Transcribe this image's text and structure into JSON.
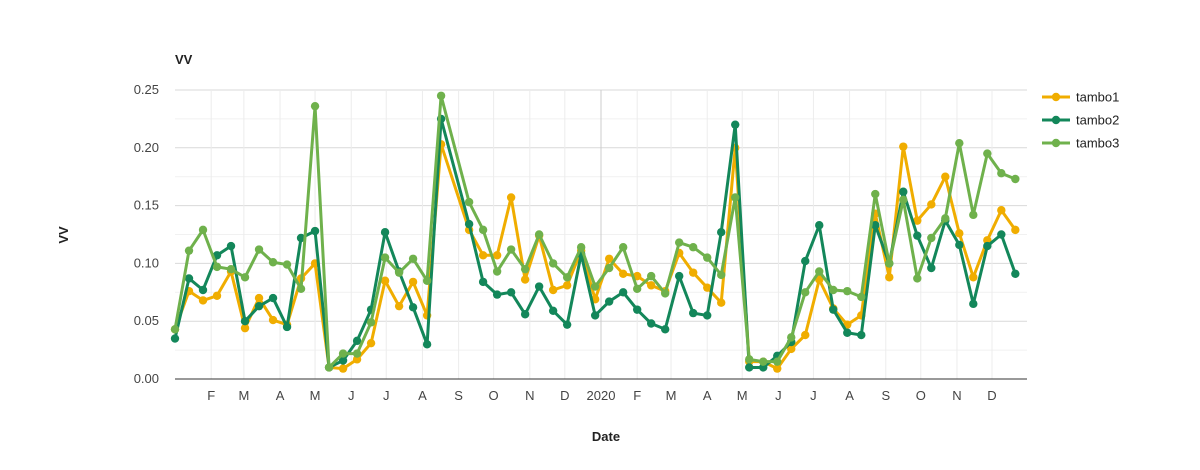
{
  "chart_data": {
    "type": "line",
    "title": "VV",
    "xlabel": "Date",
    "ylabel": "VV",
    "ylim": [
      0,
      0.25
    ],
    "yticks": [
      "0.00",
      "0.05",
      "0.10",
      "0.15",
      "0.20",
      "0.25"
    ],
    "x_range": [
      "2019-01-01",
      "2020-12-31"
    ],
    "xticks": [
      {
        "label": "F",
        "date": "2019-02-01"
      },
      {
        "label": "M",
        "date": "2019-03-01"
      },
      {
        "label": "A",
        "date": "2019-04-01"
      },
      {
        "label": "M",
        "date": "2019-05-01"
      },
      {
        "label": "J",
        "date": "2019-06-01"
      },
      {
        "label": "J",
        "date": "2019-07-01"
      },
      {
        "label": "A",
        "date": "2019-08-01"
      },
      {
        "label": "S",
        "date": "2019-09-01"
      },
      {
        "label": "O",
        "date": "2019-10-01"
      },
      {
        "label": "N",
        "date": "2019-11-01"
      },
      {
        "label": "D",
        "date": "2019-12-01"
      },
      {
        "label": "2020",
        "date": "2020-01-01"
      },
      {
        "label": "F",
        "date": "2020-02-01"
      },
      {
        "label": "M",
        "date": "2020-03-01"
      },
      {
        "label": "A",
        "date": "2020-04-01"
      },
      {
        "label": "M",
        "date": "2020-05-01"
      },
      {
        "label": "J",
        "date": "2020-06-01"
      },
      {
        "label": "J",
        "date": "2020-07-01"
      },
      {
        "label": "A",
        "date": "2020-08-01"
      },
      {
        "label": "S",
        "date": "2020-09-01"
      },
      {
        "label": "O",
        "date": "2020-10-01"
      },
      {
        "label": "N",
        "date": "2020-11-01"
      },
      {
        "label": "D",
        "date": "2020-12-01"
      }
    ],
    "grid": true,
    "legend_position": "right",
    "series": [
      {
        "name": "tambo1",
        "color": "#f0ad00",
        "points": [
          [
            "2019-01-01",
            0.043
          ],
          [
            "2019-01-13",
            0.076
          ],
          [
            "2019-01-25",
            0.068
          ],
          [
            "2019-02-06",
            0.072
          ],
          [
            "2019-02-18",
            0.093
          ],
          [
            "2019-03-02",
            0.044
          ],
          [
            "2019-03-14",
            0.07
          ],
          [
            "2019-03-26",
            0.051
          ],
          [
            "2019-04-07",
            0.047
          ],
          [
            "2019-04-19",
            0.087
          ],
          [
            "2019-05-01",
            0.1
          ],
          [
            "2019-05-13",
            0.01
          ],
          [
            "2019-05-25",
            0.009
          ],
          [
            "2019-06-06",
            0.017
          ],
          [
            "2019-06-18",
            0.031
          ],
          [
            "2019-06-30",
            0.085
          ],
          [
            "2019-07-12",
            0.063
          ],
          [
            "2019-07-24",
            0.084
          ],
          [
            "2019-08-05",
            0.055
          ],
          [
            "2019-08-17",
            0.203
          ],
          [
            "2019-09-10",
            0.129
          ],
          [
            "2019-09-22",
            0.107
          ],
          [
            "2019-10-04",
            0.107
          ],
          [
            "2019-10-16",
            0.157
          ],
          [
            "2019-10-28",
            0.086
          ],
          [
            "2019-11-09",
            0.124
          ],
          [
            "2019-11-21",
            0.077
          ],
          [
            "2019-12-03",
            0.081
          ],
          [
            "2019-12-15",
            0.111
          ],
          [
            "2019-12-27",
            0.069
          ],
          [
            "2020-01-08",
            0.104
          ],
          [
            "2020-01-20",
            0.091
          ],
          [
            "2020-02-01",
            0.089
          ],
          [
            "2020-02-13",
            0.081
          ],
          [
            "2020-02-25",
            0.076
          ],
          [
            "2020-03-08",
            0.109
          ],
          [
            "2020-03-20",
            0.092
          ],
          [
            "2020-04-01",
            0.079
          ],
          [
            "2020-04-13",
            0.066
          ],
          [
            "2020-04-25",
            0.2
          ],
          [
            "2020-05-07",
            0.015
          ],
          [
            "2020-05-19",
            0.015
          ],
          [
            "2020-05-31",
            0.009
          ],
          [
            "2020-06-12",
            0.026
          ],
          [
            "2020-06-24",
            0.038
          ],
          [
            "2020-07-06",
            0.086
          ],
          [
            "2020-07-18",
            0.061
          ],
          [
            "2020-07-30",
            0.047
          ],
          [
            "2020-08-11",
            0.055
          ],
          [
            "2020-08-23",
            0.143
          ],
          [
            "2020-09-04",
            0.088
          ],
          [
            "2020-09-16",
            0.201
          ],
          [
            "2020-09-28",
            0.137
          ],
          [
            "2020-10-10",
            0.151
          ],
          [
            "2020-10-22",
            0.175
          ],
          [
            "2020-11-03",
            0.126
          ],
          [
            "2020-11-15",
            0.088
          ],
          [
            "2020-11-27",
            0.12
          ],
          [
            "2020-12-09",
            0.146
          ],
          [
            "2020-12-21",
            0.129
          ]
        ]
      },
      {
        "name": "tambo2",
        "color": "#13875a",
        "points": [
          [
            "2019-01-01",
            0.035
          ],
          [
            "2019-01-13",
            0.087
          ],
          [
            "2019-01-25",
            0.077
          ],
          [
            "2019-02-06",
            0.107
          ],
          [
            "2019-02-18",
            0.115
          ],
          [
            "2019-03-02",
            0.05
          ],
          [
            "2019-03-14",
            0.063
          ],
          [
            "2019-03-26",
            0.07
          ],
          [
            "2019-04-07",
            0.045
          ],
          [
            "2019-04-19",
            0.122
          ],
          [
            "2019-05-01",
            0.128
          ],
          [
            "2019-05-13",
            0.01
          ],
          [
            "2019-05-25",
            0.016
          ],
          [
            "2019-06-06",
            0.033
          ],
          [
            "2019-06-18",
            0.06
          ],
          [
            "2019-06-30",
            0.127
          ],
          [
            "2019-07-12",
            0.093
          ],
          [
            "2019-07-24",
            0.062
          ],
          [
            "2019-08-05",
            0.03
          ],
          [
            "2019-08-17",
            0.225
          ],
          [
            "2019-09-10",
            0.134
          ],
          [
            "2019-09-22",
            0.084
          ],
          [
            "2019-10-04",
            0.073
          ],
          [
            "2019-10-16",
            0.075
          ],
          [
            "2019-10-28",
            0.056
          ],
          [
            "2019-11-09",
            0.08
          ],
          [
            "2019-11-21",
            0.059
          ],
          [
            "2019-12-03",
            0.047
          ],
          [
            "2019-12-15",
            0.108
          ],
          [
            "2019-12-27",
            0.055
          ],
          [
            "2020-01-08",
            0.067
          ],
          [
            "2020-01-20",
            0.075
          ],
          [
            "2020-02-01",
            0.06
          ],
          [
            "2020-02-13",
            0.048
          ],
          [
            "2020-02-25",
            0.043
          ],
          [
            "2020-03-08",
            0.089
          ],
          [
            "2020-03-20",
            0.057
          ],
          [
            "2020-04-01",
            0.055
          ],
          [
            "2020-04-13",
            0.127
          ],
          [
            "2020-04-25",
            0.22
          ],
          [
            "2020-05-07",
            0.01
          ],
          [
            "2020-05-19",
            0.01
          ],
          [
            "2020-05-31",
            0.02
          ],
          [
            "2020-06-12",
            0.032
          ],
          [
            "2020-06-24",
            0.102
          ],
          [
            "2020-07-06",
            0.133
          ],
          [
            "2020-07-18",
            0.06
          ],
          [
            "2020-07-30",
            0.04
          ],
          [
            "2020-08-11",
            0.038
          ],
          [
            "2020-08-23",
            0.133
          ],
          [
            "2020-09-04",
            0.1
          ],
          [
            "2020-09-16",
            0.162
          ],
          [
            "2020-09-28",
            0.124
          ],
          [
            "2020-10-10",
            0.096
          ],
          [
            "2020-10-22",
            0.137
          ],
          [
            "2020-11-03",
            0.116
          ],
          [
            "2020-11-15",
            0.065
          ],
          [
            "2020-11-27",
            0.115
          ],
          [
            "2020-12-09",
            0.125
          ],
          [
            "2020-12-21",
            0.091
          ]
        ]
      },
      {
        "name": "tambo3",
        "color": "#6fb14c",
        "points": [
          [
            "2019-01-01",
            0.043
          ],
          [
            "2019-01-13",
            0.111
          ],
          [
            "2019-01-25",
            0.129
          ],
          [
            "2019-02-06",
            0.097
          ],
          [
            "2019-02-18",
            0.095
          ],
          [
            "2019-03-02",
            0.088
          ],
          [
            "2019-03-14",
            0.112
          ],
          [
            "2019-03-26",
            0.101
          ],
          [
            "2019-04-07",
            0.099
          ],
          [
            "2019-04-19",
            0.078
          ],
          [
            "2019-05-01",
            0.236
          ],
          [
            "2019-05-13",
            0.01
          ],
          [
            "2019-05-25",
            0.022
          ],
          [
            "2019-06-06",
            0.022
          ],
          [
            "2019-06-18",
            0.049
          ],
          [
            "2019-06-30",
            0.105
          ],
          [
            "2019-07-12",
            0.092
          ],
          [
            "2019-07-24",
            0.104
          ],
          [
            "2019-08-05",
            0.085
          ],
          [
            "2019-08-17",
            0.245
          ],
          [
            "2019-09-10",
            0.153
          ],
          [
            "2019-09-22",
            0.129
          ],
          [
            "2019-10-04",
            0.093
          ],
          [
            "2019-10-16",
            0.112
          ],
          [
            "2019-10-28",
            0.095
          ],
          [
            "2019-11-09",
            0.125
          ],
          [
            "2019-11-21",
            0.1
          ],
          [
            "2019-12-03",
            0.088
          ],
          [
            "2019-12-15",
            0.114
          ],
          [
            "2019-12-27",
            0.08
          ],
          [
            "2020-01-08",
            0.096
          ],
          [
            "2020-01-20",
            0.114
          ],
          [
            "2020-02-01",
            0.078
          ],
          [
            "2020-02-13",
            0.089
          ],
          [
            "2020-02-25",
            0.074
          ],
          [
            "2020-03-08",
            0.118
          ],
          [
            "2020-03-20",
            0.114
          ],
          [
            "2020-04-01",
            0.105
          ],
          [
            "2020-04-13",
            0.09
          ],
          [
            "2020-04-25",
            0.157
          ],
          [
            "2020-05-07",
            0.017
          ],
          [
            "2020-05-19",
            0.015
          ],
          [
            "2020-05-31",
            0.015
          ],
          [
            "2020-06-12",
            0.036
          ],
          [
            "2020-06-24",
            0.075
          ],
          [
            "2020-07-06",
            0.093
          ],
          [
            "2020-07-18",
            0.077
          ],
          [
            "2020-07-30",
            0.076
          ],
          [
            "2020-08-11",
            0.071
          ],
          [
            "2020-08-23",
            0.16
          ],
          [
            "2020-09-04",
            0.1
          ],
          [
            "2020-09-16",
            0.155
          ],
          [
            "2020-09-28",
            0.087
          ],
          [
            "2020-10-10",
            0.122
          ],
          [
            "2020-10-22",
            0.139
          ],
          [
            "2020-11-03",
            0.204
          ],
          [
            "2020-11-15",
            0.142
          ],
          [
            "2020-11-27",
            0.195
          ],
          [
            "2020-12-09",
            0.178
          ],
          [
            "2020-12-21",
            0.173
          ]
        ]
      }
    ]
  }
}
